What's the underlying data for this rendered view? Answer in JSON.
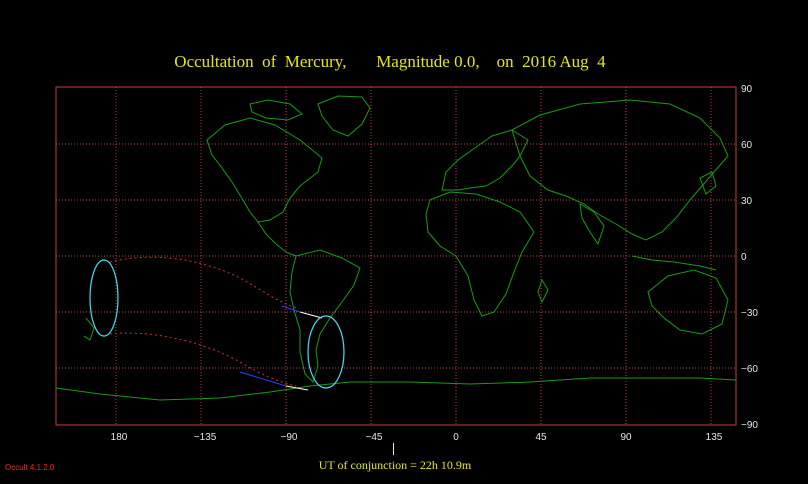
{
  "title": "Occultation  of  Mercury,       Magnitude 0.0,    on  2016 Aug  4",
  "y_axis_labels": [
    "90",
    "60",
    "30",
    "0",
    "−30",
    "−60",
    "−90"
  ],
  "x_axis_labels": [
    "180",
    "−135",
    "−90",
    "−45",
    "0",
    "45",
    "90",
    "135"
  ],
  "ut_label": "UT of conjunction = 22h 10.9m",
  "version": "Occult 4.1.2.0",
  "colors": {
    "background": "#000000",
    "grid": "#c83c3c",
    "coastline": "#1a9a1a",
    "title": "#e6e619",
    "axis_text": "#e6e6e6",
    "limit_curve": "#40e0f0",
    "path_limit": "#d03030",
    "path_center": "#3040ff",
    "path_white": "#ffffff",
    "version": "#ff2020"
  }
}
